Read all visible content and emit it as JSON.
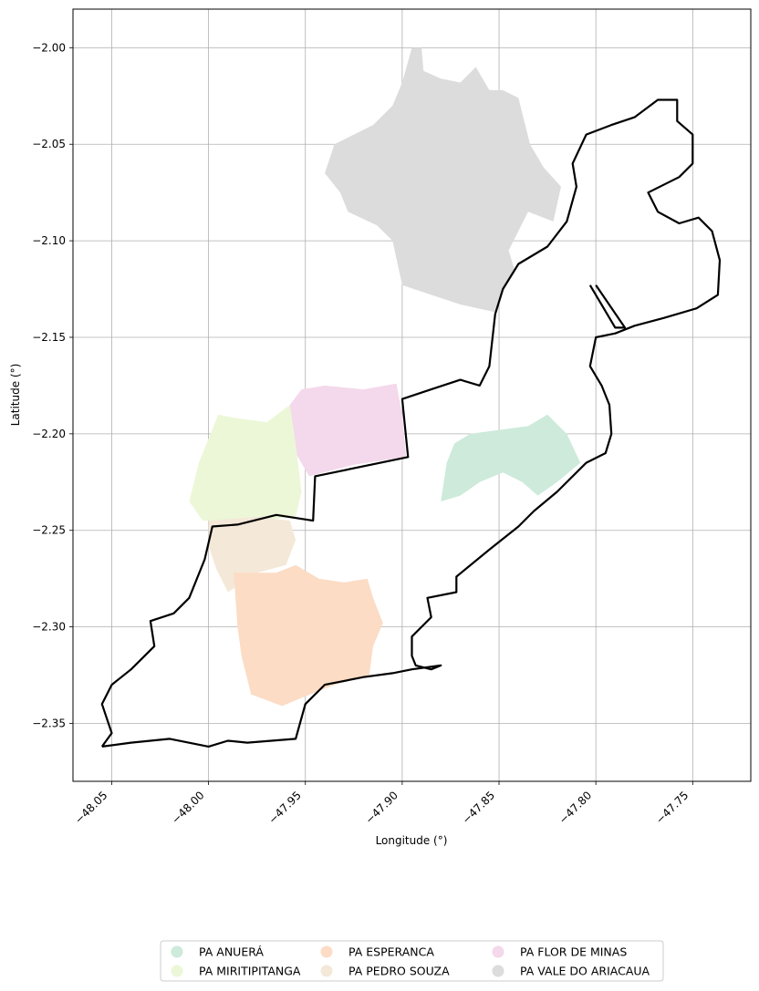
{
  "chart_data": {
    "type": "map",
    "xlabel": "Longitude (°)",
    "ylabel": "Latitude (°)",
    "xlim": [
      -48.07,
      -47.72
    ],
    "ylim": [
      -2.38,
      -1.98
    ],
    "xticks": [
      -48.05,
      -48.0,
      -47.95,
      -47.9,
      -47.85,
      -47.8,
      -47.75
    ],
    "xtick_labels": [
      "−48.05",
      "−48.00",
      "−47.95",
      "−47.90",
      "−47.85",
      "−47.80",
      "−47.75"
    ],
    "yticks": [
      -2.0,
      -2.05,
      -2.1,
      -2.15,
      -2.2,
      -2.25,
      -2.3,
      -2.35
    ],
    "ytick_labels": [
      "−2.00",
      "−2.05",
      "−2.10",
      "−2.15",
      "−2.20",
      "−2.25",
      "−2.30",
      "−2.35"
    ],
    "grid": true,
    "legend_position": "bottom-center",
    "legend": [
      {
        "label": "PA ANUERÁ",
        "color": "#cdeadb"
      },
      {
        "label": "PA ESPERANCA",
        "color": "#fcdcc5"
      },
      {
        "label": "PA FLOR DE MINAS",
        "color": "#f4d8eb"
      },
      {
        "label": "PA MIRITIPITANGA",
        "color": "#ecf7d8"
      },
      {
        "label": "PA PEDRO SOUZA",
        "color": "#f4e8d8"
      },
      {
        "label": "PA VALE DO ARIACAUA",
        "color": "#dcdcdc"
      }
    ],
    "regions": [
      {
        "name": "PA VALE DO ARIACAUA",
        "color": "#dcdcdc",
        "coords": [
          [
            -47.895,
            -2.0
          ],
          [
            -47.89,
            -2.0
          ],
          [
            -47.889,
            -2.012
          ],
          [
            -47.88,
            -2.016
          ],
          [
            -47.87,
            -2.018
          ],
          [
            -47.862,
            -2.01
          ],
          [
            -47.855,
            -2.022
          ],
          [
            -47.848,
            -2.022
          ],
          [
            -47.84,
            -2.026
          ],
          [
            -47.834,
            -2.05
          ],
          [
            -47.827,
            -2.062
          ],
          [
            -47.818,
            -2.072
          ],
          [
            -47.822,
            -2.09
          ],
          [
            -47.835,
            -2.085
          ],
          [
            -47.845,
            -2.105
          ],
          [
            -47.842,
            -2.115
          ],
          [
            -47.848,
            -2.125
          ],
          [
            -47.852,
            -2.137
          ],
          [
            -47.87,
            -2.133
          ],
          [
            -47.885,
            -2.128
          ],
          [
            -47.9,
            -2.123
          ],
          [
            -47.905,
            -2.1
          ],
          [
            -47.913,
            -2.092
          ],
          [
            -47.928,
            -2.085
          ],
          [
            -47.932,
            -2.075
          ],
          [
            -47.94,
            -2.065
          ],
          [
            -47.935,
            -2.05
          ],
          [
            -47.915,
            -2.04
          ],
          [
            -47.905,
            -2.03
          ],
          [
            -47.9,
            -2.018
          ]
        ]
      },
      {
        "name": "PA ANUERÁ",
        "color": "#cdeadb",
        "coords": [
          [
            -47.88,
            -2.235
          ],
          [
            -47.877,
            -2.215
          ],
          [
            -47.873,
            -2.205
          ],
          [
            -47.865,
            -2.2
          ],
          [
            -47.85,
            -2.198
          ],
          [
            -47.835,
            -2.196
          ],
          [
            -47.825,
            -2.19
          ],
          [
            -47.815,
            -2.2
          ],
          [
            -47.808,
            -2.215
          ],
          [
            -47.82,
            -2.225
          ],
          [
            -47.83,
            -2.232
          ],
          [
            -47.838,
            -2.225
          ],
          [
            -47.848,
            -2.22
          ],
          [
            -47.86,
            -2.225
          ],
          [
            -47.87,
            -2.232
          ]
        ]
      },
      {
        "name": "PA FLOR DE MINAS",
        "color": "#f4d8eb",
        "coords": [
          [
            -47.958,
            -2.185
          ],
          [
            -47.952,
            -2.177
          ],
          [
            -47.94,
            -2.175
          ],
          [
            -47.92,
            -2.177
          ],
          [
            -47.903,
            -2.174
          ],
          [
            -47.9,
            -2.19
          ],
          [
            -47.898,
            -2.212
          ],
          [
            -47.925,
            -2.216
          ],
          [
            -47.948,
            -2.222
          ],
          [
            -47.955,
            -2.21
          ],
          [
            -47.958,
            -2.195
          ]
        ]
      },
      {
        "name": "PA MIRITIPITANGA",
        "color": "#ecf7d8",
        "coords": [
          [
            -48.01,
            -2.235
          ],
          [
            -48.005,
            -2.215
          ],
          [
            -47.995,
            -2.19
          ],
          [
            -47.985,
            -2.192
          ],
          [
            -47.97,
            -2.194
          ],
          [
            -47.958,
            -2.185
          ],
          [
            -47.955,
            -2.205
          ],
          [
            -47.952,
            -2.23
          ],
          [
            -47.955,
            -2.243
          ],
          [
            -47.965,
            -2.244
          ],
          [
            -47.988,
            -2.245
          ],
          [
            -48.003,
            -2.245
          ]
        ]
      },
      {
        "name": "PA PEDRO SOUZA",
        "color": "#f4e8d8",
        "coords": [
          [
            -48.0,
            -2.245
          ],
          [
            -47.975,
            -2.243
          ],
          [
            -47.958,
            -2.245
          ],
          [
            -47.955,
            -2.255
          ],
          [
            -47.96,
            -2.268
          ],
          [
            -47.975,
            -2.272
          ],
          [
            -47.99,
            -2.282
          ],
          [
            -47.996,
            -2.27
          ],
          [
            -48.0,
            -2.258
          ]
        ]
      },
      {
        "name": "PA ESPERANCA",
        "color": "#fcdcc5",
        "coords": [
          [
            -47.987,
            -2.272
          ],
          [
            -47.985,
            -2.3
          ],
          [
            -47.983,
            -2.315
          ],
          [
            -47.978,
            -2.335
          ],
          [
            -47.962,
            -2.341
          ],
          [
            -47.95,
            -2.336
          ],
          [
            -47.935,
            -2.33
          ],
          [
            -47.917,
            -2.325
          ],
          [
            -47.915,
            -2.31
          ],
          [
            -47.91,
            -2.298
          ],
          [
            -47.915,
            -2.285
          ],
          [
            -47.918,
            -2.275
          ],
          [
            -47.93,
            -2.277
          ],
          [
            -47.943,
            -2.275
          ],
          [
            -47.955,
            -2.268
          ],
          [
            -47.965,
            -2.272
          ]
        ]
      }
    ],
    "boundary": [
      [
        -48.055,
        -2.362
      ],
      [
        -48.04,
        -2.36
      ],
      [
        -48.02,
        -2.358
      ],
      [
        -48.0,
        -2.362
      ],
      [
        -47.99,
        -2.359
      ],
      [
        -47.98,
        -2.36
      ],
      [
        -47.955,
        -2.358
      ],
      [
        -47.95,
        -2.34
      ],
      [
        -47.94,
        -2.33
      ],
      [
        -47.92,
        -2.326
      ],
      [
        -47.905,
        -2.324
      ],
      [
        -47.895,
        -2.322
      ],
      [
        -47.88,
        -2.32
      ],
      [
        -47.885,
        -2.322
      ],
      [
        -47.893,
        -2.32
      ],
      [
        -47.895,
        -2.315
      ],
      [
        -47.895,
        -2.305
      ],
      [
        -47.885,
        -2.295
      ],
      [
        -47.887,
        -2.285
      ],
      [
        -47.872,
        -2.282
      ],
      [
        -47.872,
        -2.274
      ],
      [
        -47.855,
        -2.26
      ],
      [
        -47.84,
        -2.248
      ],
      [
        -47.832,
        -2.24
      ],
      [
        -47.82,
        -2.23
      ],
      [
        -47.805,
        -2.215
      ],
      [
        -47.795,
        -2.21
      ],
      [
        -47.792,
        -2.2
      ],
      [
        -47.793,
        -2.185
      ],
      [
        -47.797,
        -2.175
      ],
      [
        -47.803,
        -2.165
      ],
      [
        -47.8,
        -2.15
      ],
      [
        -47.79,
        -2.148
      ],
      [
        -47.78,
        -2.144
      ],
      [
        -47.765,
        -2.14
      ],
      [
        -47.748,
        -2.135
      ],
      [
        -47.737,
        -2.128
      ],
      [
        -47.736,
        -2.11
      ],
      [
        -47.74,
        -2.095
      ],
      [
        -47.747,
        -2.088
      ],
      [
        -47.757,
        -2.091
      ],
      [
        -47.768,
        -2.085
      ],
      [
        -47.773,
        -2.075
      ],
      [
        -47.757,
        -2.067
      ],
      [
        -47.75,
        -2.06
      ],
      [
        -47.75,
        -2.045
      ],
      [
        -47.758,
        -2.038
      ],
      [
        -47.758,
        -2.027
      ],
      [
        -47.768,
        -2.027
      ],
      [
        -47.78,
        -2.036
      ],
      [
        -47.792,
        -2.04
      ],
      [
        -47.805,
        -2.045
      ],
      [
        -47.812,
        -2.06
      ],
      [
        -47.81,
        -2.072
      ],
      [
        -47.815,
        -2.09
      ],
      [
        -47.825,
        -2.103
      ],
      [
        -47.84,
        -2.112
      ],
      [
        -47.848,
        -2.125
      ],
      [
        -47.852,
        -2.138
      ],
      [
        -47.855,
        -2.165
      ],
      [
        -47.86,
        -2.175
      ],
      [
        -47.87,
        -2.172
      ],
      [
        -47.885,
        -2.177
      ],
      [
        -47.9,
        -2.182
      ],
      [
        -47.897,
        -2.212
      ],
      [
        -47.945,
        -2.222
      ],
      [
        -47.946,
        -2.245
      ],
      [
        -47.965,
        -2.242
      ],
      [
        -47.985,
        -2.247
      ],
      [
        -47.998,
        -2.248
      ],
      [
        -48.002,
        -2.265
      ],
      [
        -48.01,
        -2.285
      ],
      [
        -48.018,
        -2.293
      ],
      [
        -48.03,
        -2.297
      ],
      [
        -48.028,
        -2.31
      ],
      [
        -48.04,
        -2.322
      ],
      [
        -48.05,
        -2.33
      ],
      [
        -48.055,
        -2.34
      ],
      [
        -48.05,
        -2.355
      ],
      [
        -48.055,
        -2.362
      ]
    ],
    "inner_line": [
      [
        -47.803,
        -2.123
      ],
      [
        -47.79,
        -2.145
      ],
      [
        -47.785,
        -2.145
      ],
      [
        -47.8,
        -2.123
      ]
    ]
  }
}
